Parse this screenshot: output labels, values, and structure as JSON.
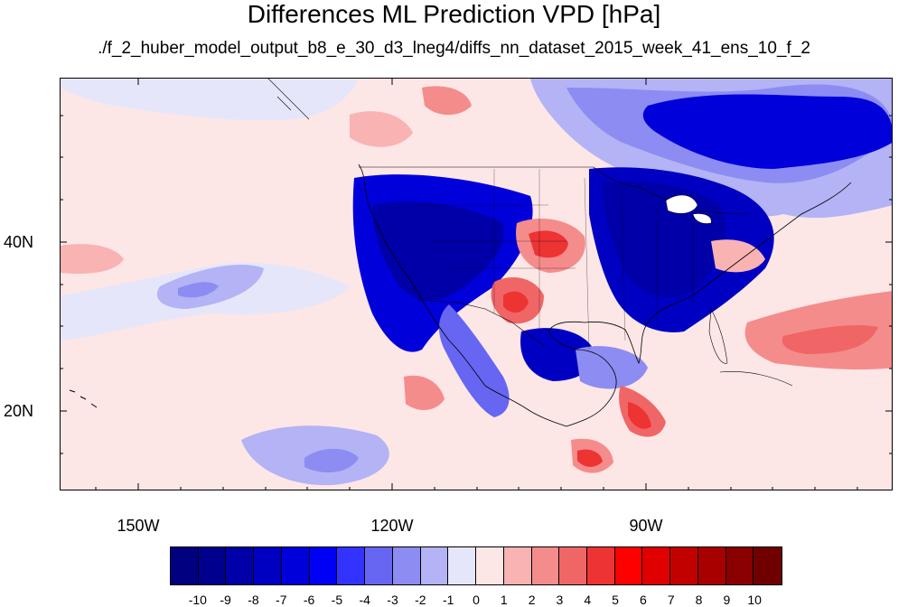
{
  "title": "Differences ML Prediction VPD [hPa]",
  "subtitle": "./f_2_huber_model_output_b8_e_30_d3_lneg4/diffs_nn_dataset_2015_week_41_ens_10_f_2",
  "axes": {
    "lat_labels": [
      "40N",
      "20N"
    ],
    "lon_labels": [
      "150W",
      "120W",
      "90W"
    ],
    "lon_range": [
      -160,
      -62
    ],
    "lat_range": [
      11,
      60
    ]
  },
  "colorbar": {
    "labels": [
      "-10",
      "-9",
      "-8",
      "-7",
      "-6",
      "-5",
      "-4",
      "-3",
      "-2",
      "-1",
      "0",
      "1",
      "2",
      "3",
      "4",
      "5",
      "6",
      "7",
      "8",
      "9",
      "10"
    ],
    "colors": [
      "#000080",
      "#00008f",
      "#0000a8",
      "#0000c2",
      "#0000db",
      "#0000f5",
      "#3333ff",
      "#6666f2",
      "#8c8cf2",
      "#b3b3f5",
      "#e6e6fa",
      "#fde6e6",
      "#f9b3b3",
      "#f58c8c",
      "#f06666",
      "#ee3333",
      "#ff0000",
      "#e00000",
      "#c20000",
      "#a80000",
      "#8a0000",
      "#700000"
    ]
  }
}
